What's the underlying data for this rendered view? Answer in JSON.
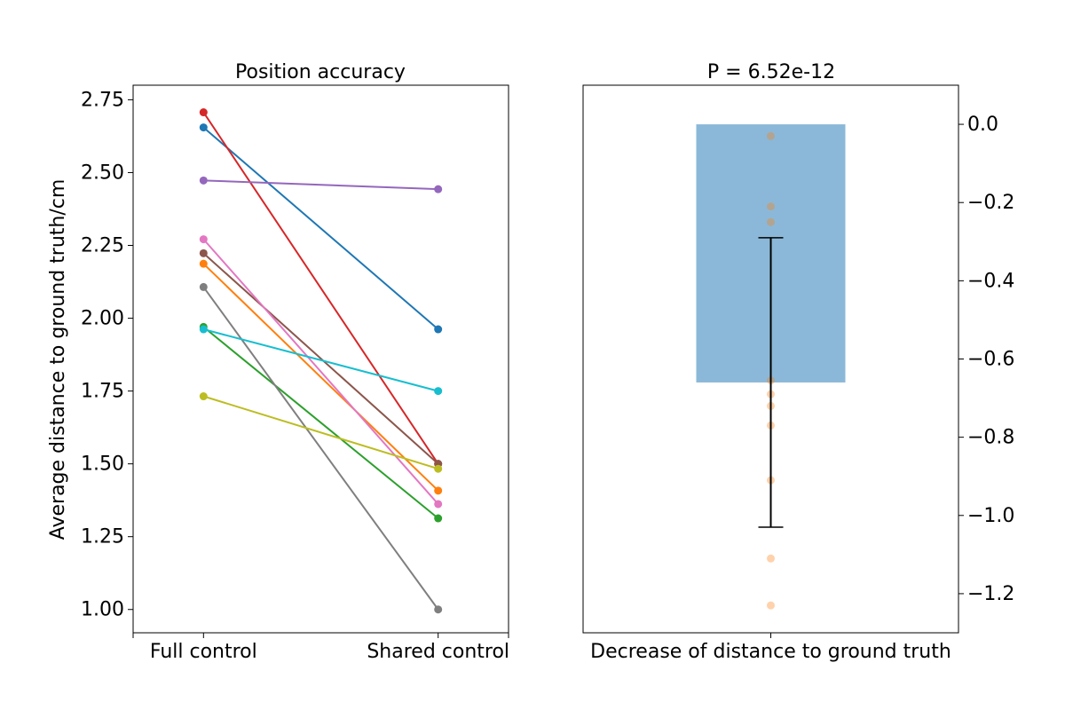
{
  "chart_data": [
    {
      "type": "line",
      "title": "Position accuracy",
      "xlabel": "",
      "ylabel": "Average distance to ground truth/cm",
      "categories": [
        "Full control",
        "Shared control"
      ],
      "xlim": [
        -0.3,
        1.3
      ],
      "ylim": [
        0.92,
        2.8
      ],
      "yticks": [
        1.0,
        1.25,
        1.5,
        1.75,
        2.0,
        2.25,
        2.5,
        2.75
      ],
      "ytick_labels": [
        "1.00",
        "1.25",
        "1.50",
        "1.75",
        "2.00",
        "2.25",
        "2.50",
        "2.75"
      ],
      "series": [
        {
          "color": "#1f77b4",
          "values": [
            2.655,
            1.962
          ]
        },
        {
          "color": "#ff7f0e",
          "values": [
            2.187,
            1.408
          ]
        },
        {
          "color": "#2ca02c",
          "values": [
            1.97,
            1.313
          ]
        },
        {
          "color": "#d62728",
          "values": [
            2.707,
            1.5
          ]
        },
        {
          "color": "#9467bd",
          "values": [
            2.473,
            2.443
          ]
        },
        {
          "color": "#8c564b",
          "values": [
            2.223,
            1.5
          ]
        },
        {
          "color": "#e377c2",
          "values": [
            2.271,
            1.362
          ]
        },
        {
          "color": "#7f7f7f",
          "values": [
            2.107,
            1.0
          ]
        },
        {
          "color": "#bcbd22",
          "values": [
            1.732,
            1.483
          ]
        },
        {
          "color": "#17becf",
          "values": [
            1.962,
            1.75
          ]
        }
      ]
    },
    {
      "type": "bar",
      "title": "P = 6.52e-12",
      "xlabel": "",
      "ylabel": "",
      "categories": [
        "Decrease of distance to ground truth"
      ],
      "values": [
        -0.66
      ],
      "error": [
        0.37
      ],
      "bar_color": "#8bb8d8",
      "points_color": "#ff7f0e",
      "points": [
        -0.03,
        -0.21,
        -0.25,
        -0.655,
        -0.69,
        -0.72,
        -0.77,
        -0.91,
        -1.11,
        -1.23
      ],
      "ylim": [
        -1.3,
        0.1
      ],
      "yticks": [
        0.0,
        -0.2,
        -0.4,
        -0.6,
        -0.8,
        -1.0,
        -1.2
      ],
      "ytick_labels": [
        "0.0",
        "−0.2",
        "−0.4",
        "−0.6",
        "−0.8",
        "−1.0",
        "−1.2"
      ],
      "yaxis_side": "right"
    }
  ]
}
